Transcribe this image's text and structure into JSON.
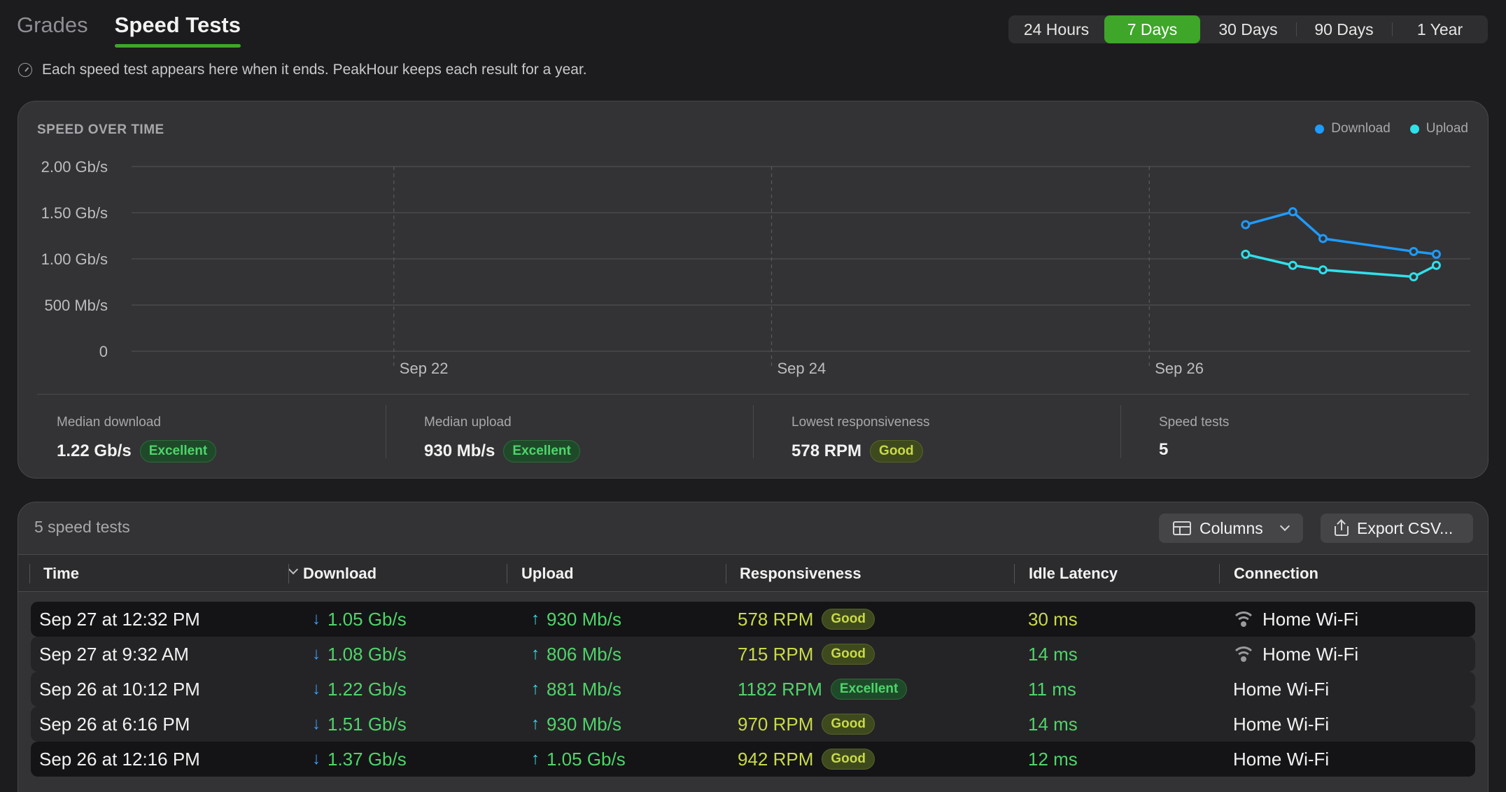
{
  "tabs": [
    {
      "label": "Grades",
      "active": false
    },
    {
      "label": "Speed Tests",
      "active": true
    }
  ],
  "ranges": [
    {
      "label": "24 Hours",
      "active": false
    },
    {
      "label": "7 Days",
      "active": true
    },
    {
      "label": "30 Days",
      "active": false
    },
    {
      "label": "90 Days",
      "active": false
    },
    {
      "label": "1 Year",
      "active": false
    }
  ],
  "info_text": "Each speed test appears here when it ends. PeakHour keeps each result for a year.",
  "chart": {
    "title": "SPEED OVER TIME",
    "legend": [
      {
        "label": "Download",
        "color": "#2e8cf0"
      },
      {
        "label": "Upload",
        "color": "#2fd6e3"
      }
    ]
  },
  "chart_data": {
    "type": "line",
    "title": "SPEED OVER TIME",
    "y_ticks": [
      "2.00 Gb/s",
      "1.50 Gb/s",
      "1.00 Gb/s",
      "500 Mb/s",
      "0"
    ],
    "ylim": [
      0,
      2.0
    ],
    "y_unit": "Gb/s",
    "x_ticks": [
      "Sep 22",
      "Sep 24",
      "Sep 26"
    ],
    "x_range_days": [
      20.5,
      27.7
    ],
    "grid": true,
    "legend_position": "top-right",
    "series": [
      {
        "name": "Download",
        "color": "#2e8cf0",
        "points": [
          {
            "x": 26.51,
            "y": 1.37
          },
          {
            "x": 26.76,
            "y": 1.51
          },
          {
            "x": 26.92,
            "y": 1.22
          },
          {
            "x": 27.4,
            "y": 1.08
          },
          {
            "x": 27.52,
            "y": 1.05
          }
        ]
      },
      {
        "name": "Upload",
        "color": "#2fd6e3",
        "points": [
          {
            "x": 26.51,
            "y": 1.05
          },
          {
            "x": 26.76,
            "y": 0.93
          },
          {
            "x": 26.92,
            "y": 0.881
          },
          {
            "x": 27.4,
            "y": 0.806
          },
          {
            "x": 27.52,
            "y": 0.93
          }
        ]
      }
    ]
  },
  "stats": [
    {
      "label": "Median download",
      "value": "1.22 Gb/s",
      "badge": "Excellent",
      "badge_type": "excellent"
    },
    {
      "label": "Median upload",
      "value": "930 Mb/s",
      "badge": "Excellent",
      "badge_type": "excellent"
    },
    {
      "label": "Lowest responsiveness",
      "value": "578 RPM",
      "badge": "Good",
      "badge_type": "good"
    },
    {
      "label": "Speed tests",
      "value": "5",
      "badge": "",
      "badge_type": ""
    }
  ],
  "table": {
    "count_label": "5 speed tests",
    "columns_label": "Columns",
    "export_label": "Export CSV...",
    "headers": [
      "Time",
      "Download",
      "Upload",
      "Responsiveness",
      "Idle Latency",
      "Connection"
    ],
    "rows": [
      {
        "time": "Sep 27 at 12:32 PM",
        "download": "1.05 Gb/s",
        "upload": "930 Mb/s",
        "resp": "578 RPM",
        "resp_badge": "Good",
        "idle": "30 ms",
        "idle_level": "yellow",
        "conn": "Home Wi-Fi",
        "wifi": true
      },
      {
        "time": "Sep 27 at 9:32 AM",
        "download": "1.08 Gb/s",
        "upload": "806 Mb/s",
        "resp": "715 RPM",
        "resp_badge": "Good",
        "idle": "14 ms",
        "idle_level": "green",
        "conn": "Home Wi-Fi",
        "wifi": true
      },
      {
        "time": "Sep 26 at 10:12 PM",
        "download": "1.22 Gb/s",
        "upload": "881 Mb/s",
        "resp": "1182 RPM",
        "resp_badge": "Excellent",
        "idle": "11 ms",
        "idle_level": "green",
        "conn": "Home Wi-Fi",
        "wifi": false
      },
      {
        "time": "Sep 26 at 6:16 PM",
        "download": "1.51 Gb/s",
        "upload": "930 Mb/s",
        "resp": "970 RPM",
        "resp_badge": "Good",
        "idle": "14 ms",
        "idle_level": "green",
        "conn": "Home Wi-Fi",
        "wifi": false
      },
      {
        "time": "Sep 26 at 12:16 PM",
        "download": "1.37 Gb/s",
        "upload": "1.05 Gb/s",
        "resp": "942 RPM",
        "resp_badge": "Good",
        "idle": "12 ms",
        "idle_level": "green",
        "conn": "Home Wi-Fi",
        "wifi": false
      }
    ]
  }
}
